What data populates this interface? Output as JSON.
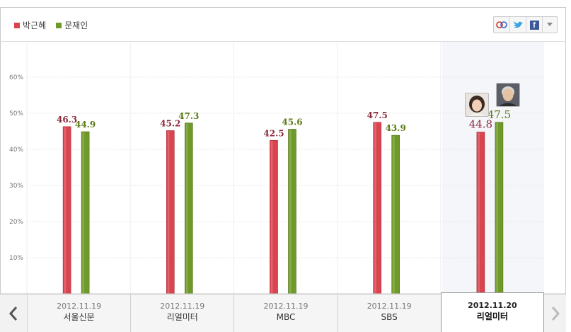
{
  "legend": [
    {
      "name": "박근혜",
      "color": "#d9444f"
    },
    {
      "name": "문재인",
      "color": "#6f9a2a"
    }
  ],
  "share": {
    "icons": [
      "mypeople-icon",
      "twitter-icon",
      "facebook-icon",
      "chevron-down-icon"
    ],
    "facebook_glyph": "f"
  },
  "chart_data": {
    "type": "bar",
    "categories": [
      "2012.11.19 서울신문",
      "2012.11.19 리얼미터",
      "2012.11.19 MBC",
      "2012.11.19 SBS",
      "2012.11.20 리얼미터"
    ],
    "series": [
      {
        "name": "박근혜",
        "color": "#d9444f",
        "values": [
          46.3,
          45.2,
          42.5,
          47.5,
          44.8
        ]
      },
      {
        "name": "문재인",
        "color": "#6f9a2a",
        "values": [
          44.9,
          47.3,
          45.6,
          43.9,
          47.5
        ]
      }
    ],
    "yticks": [
      "10%",
      "20%",
      "30%",
      "40%",
      "50%",
      "60%"
    ],
    "ylim": [
      0,
      60
    ],
    "grid": true,
    "legend_position": "top-left"
  },
  "nav": {
    "tabs": [
      {
        "date": "2012.11.19",
        "name": "서울신문",
        "active": false
      },
      {
        "date": "2012.11.19",
        "name": "리얼미터",
        "active": false
      },
      {
        "date": "2012.11.19",
        "name": "MBC",
        "active": false
      },
      {
        "date": "2012.11.19",
        "name": "SBS",
        "active": false
      },
      {
        "date": "2012.11.20",
        "name": "리얼미터",
        "active": true
      }
    ]
  }
}
